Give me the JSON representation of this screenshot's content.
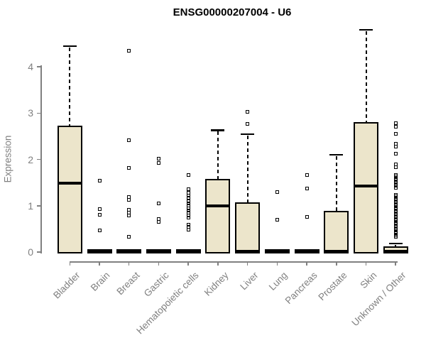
{
  "title": "ENSG00000207004 - U6",
  "y_axis": {
    "label": "Expression",
    "tick_labels": [
      "0",
      "1",
      "2",
      "3",
      "4"
    ]
  },
  "colors": {
    "box_fill": "#ece5cb",
    "box_border": "#000000",
    "axis": "#808080",
    "text_gray": "#808080",
    "title_color": "#000000",
    "background": "#ffffff"
  },
  "chart_data": {
    "type": "boxplot",
    "title": "ENSG00000207004 - U6",
    "xlabel": "",
    "ylabel": "Expression",
    "ylim": [
      0,
      4.9
    ],
    "yticks": [
      0,
      1,
      2,
      3,
      4
    ],
    "grid": false,
    "legend": false,
    "whisker_style": "dashed",
    "outlier_marker": "open-square",
    "categories": [
      "Bladder",
      "Brain",
      "Breast",
      "Gastric",
      "Hematopoietic cells",
      "Kidney",
      "Liver",
      "Lung",
      "Pancreas",
      "Prostate",
      "Skin",
      "Unknown / Other"
    ],
    "series": [
      {
        "name": "Bladder",
        "q1": 0,
        "median": 1.48,
        "q3": 2.71,
        "whisker_low": 0,
        "whisker_high": 4.45,
        "outliers": []
      },
      {
        "name": "Brain",
        "q1": 0,
        "median": 0.02,
        "q3": 0.04,
        "whisker_low": 0,
        "whisker_high": 0.04,
        "outliers": [
          1.54,
          0.93,
          0.8,
          0.46
        ]
      },
      {
        "name": "Breast",
        "q1": 0,
        "median": 0.02,
        "q3": 0.04,
        "whisker_low": 0,
        "whisker_high": 0.04,
        "outliers": [
          4.35,
          2.41,
          1.82,
          1.19,
          1.12,
          0.91,
          0.85,
          0.79,
          0.33
        ]
      },
      {
        "name": "Gastric",
        "q1": 0,
        "median": 0.02,
        "q3": 0.04,
        "whisker_low": 0,
        "whisker_high": 0.04,
        "outliers": [
          2.02,
          1.93,
          1.05,
          0.71,
          0.65
        ]
      },
      {
        "name": "Hematopoietic cells",
        "q1": 0,
        "median": 0.02,
        "q3": 0.04,
        "whisker_low": 0,
        "whisker_high": 0.04,
        "outliers": [
          1.66,
          1.35,
          1.28,
          1.22,
          1.17,
          1.1,
          1.05,
          1.0,
          0.95,
          0.9,
          0.85,
          0.79,
          0.74,
          0.59,
          0.54,
          0.49
        ]
      },
      {
        "name": "Kidney",
        "q1": 0,
        "median": 1.0,
        "q3": 1.56,
        "whisker_low": 0,
        "whisker_high": 2.63,
        "outliers": []
      },
      {
        "name": "Liver",
        "q1": 0,
        "median": 0.02,
        "q3": 1.05,
        "whisker_low": 0,
        "whisker_high": 2.55,
        "outliers": [
          3.02,
          2.77
        ]
      },
      {
        "name": "Lung",
        "q1": 0,
        "median": 0.02,
        "q3": 0.04,
        "whisker_low": 0,
        "whisker_high": 0.04,
        "outliers": [
          1.3,
          0.69
        ]
      },
      {
        "name": "Pancreas",
        "q1": 0,
        "median": 0.02,
        "q3": 0.04,
        "whisker_low": 0,
        "whisker_high": 0.04,
        "outliers": [
          1.66,
          1.37,
          0.76
        ]
      },
      {
        "name": "Prostate",
        "q1": 0,
        "median": 0.02,
        "q3": 0.87,
        "whisker_low": 0,
        "whisker_high": 2.1,
        "outliers": []
      },
      {
        "name": "Skin",
        "q1": 0,
        "median": 1.42,
        "q3": 2.79,
        "whisker_low": 0,
        "whisker_high": 4.8,
        "outliers": []
      },
      {
        "name": "Unknown / Other",
        "q1": 0,
        "median": 0.02,
        "q3": 0.1,
        "whisker_low": 0,
        "whisker_high": 0.19,
        "outliers": [
          2.78,
          2.71,
          2.55,
          2.34,
          2.27,
          2.12,
          1.9,
          1.83,
          1.67,
          1.63,
          1.59,
          1.55,
          1.51,
          1.47,
          1.43,
          1.39,
          1.24,
          1.2,
          1.16,
          1.12,
          1.08,
          1.04,
          1.0,
          0.96,
          0.92,
          0.88,
          0.84,
          0.8,
          0.76,
          0.72,
          0.68,
          0.64,
          0.6,
          0.56,
          0.52,
          0.48,
          0.44,
          0.4,
          0.36,
          0.33
        ]
      }
    ]
  }
}
